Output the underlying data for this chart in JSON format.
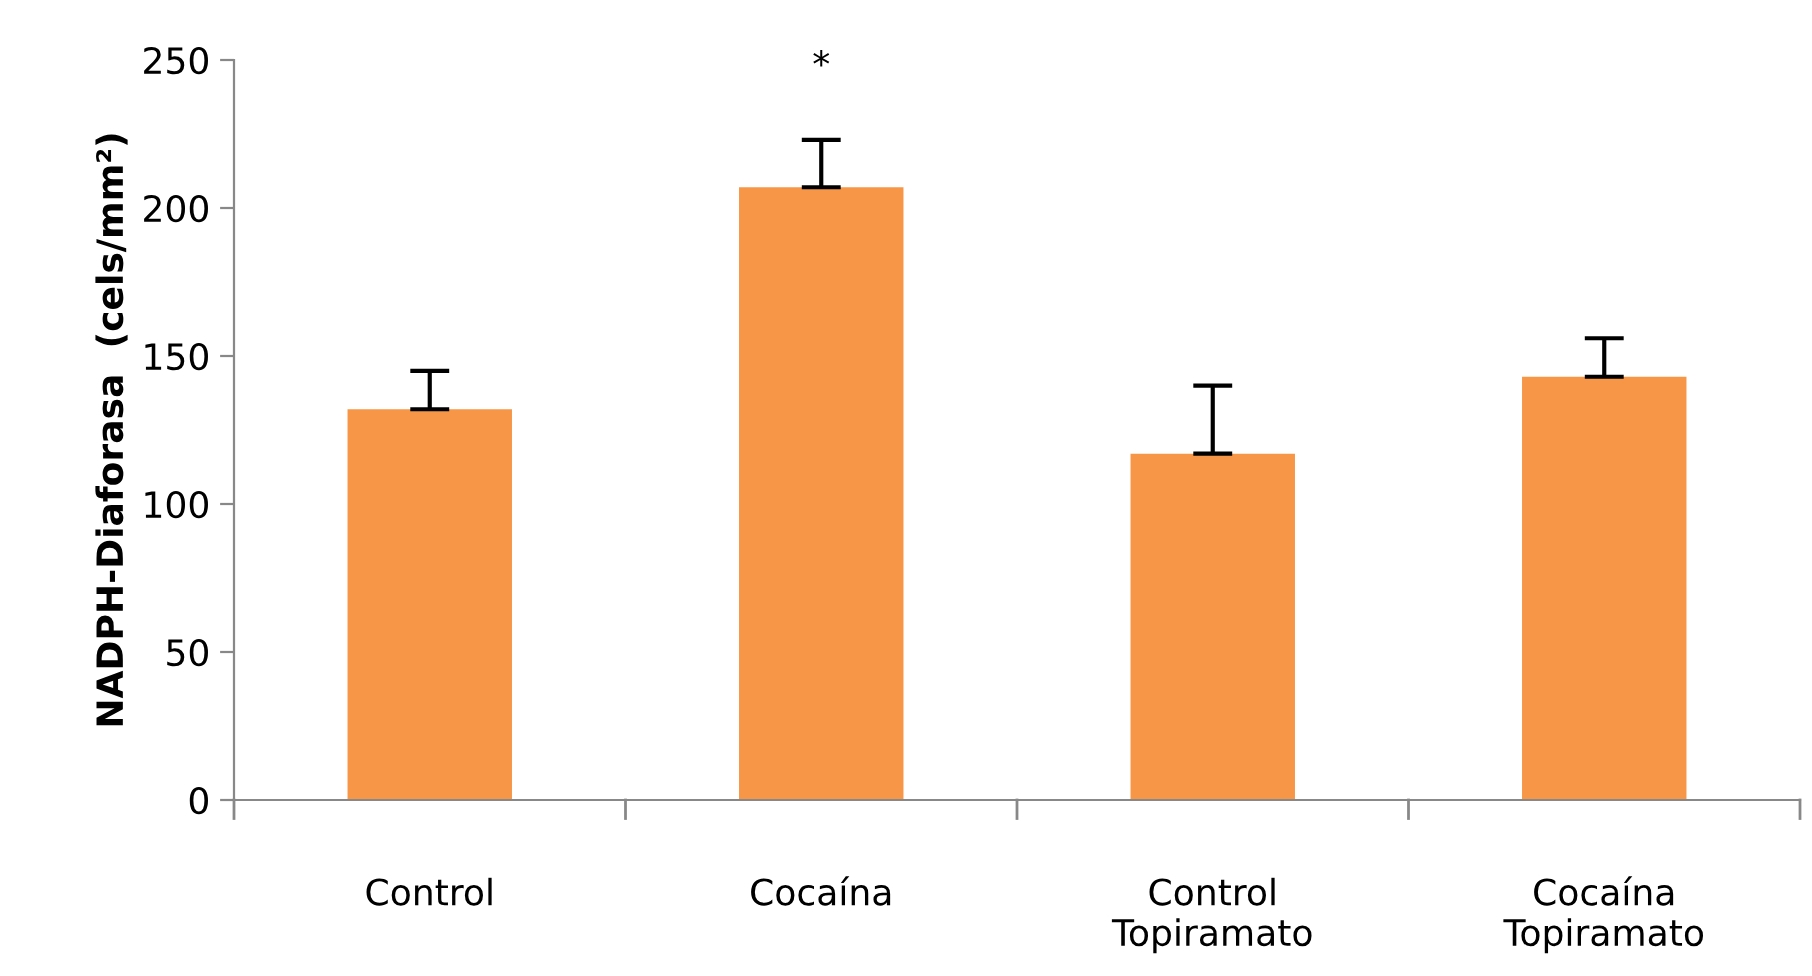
{
  "chart_data": {
    "type": "bar",
    "ylabel": "NADPH-Diaforasa  (cels/mm²)",
    "categories": [
      "Control",
      "Cocaína",
      "Control\nTopiramato",
      "Cocaína\nTopiramato"
    ],
    "values": [
      132,
      207,
      117,
      143
    ],
    "errors": [
      [
        132,
        145
      ],
      [
        207,
        223
      ],
      [
        117,
        140
      ],
      [
        143,
        156
      ]
    ],
    "color": "#f79646",
    "ylim": [
      0,
      250
    ],
    "yticks": [
      0,
      50,
      100,
      150,
      200,
      250
    ],
    "grid": false,
    "legend": false,
    "annotations": [
      {
        "text": "*",
        "x": "Cocaína",
        "y": 223
      }
    ]
  }
}
